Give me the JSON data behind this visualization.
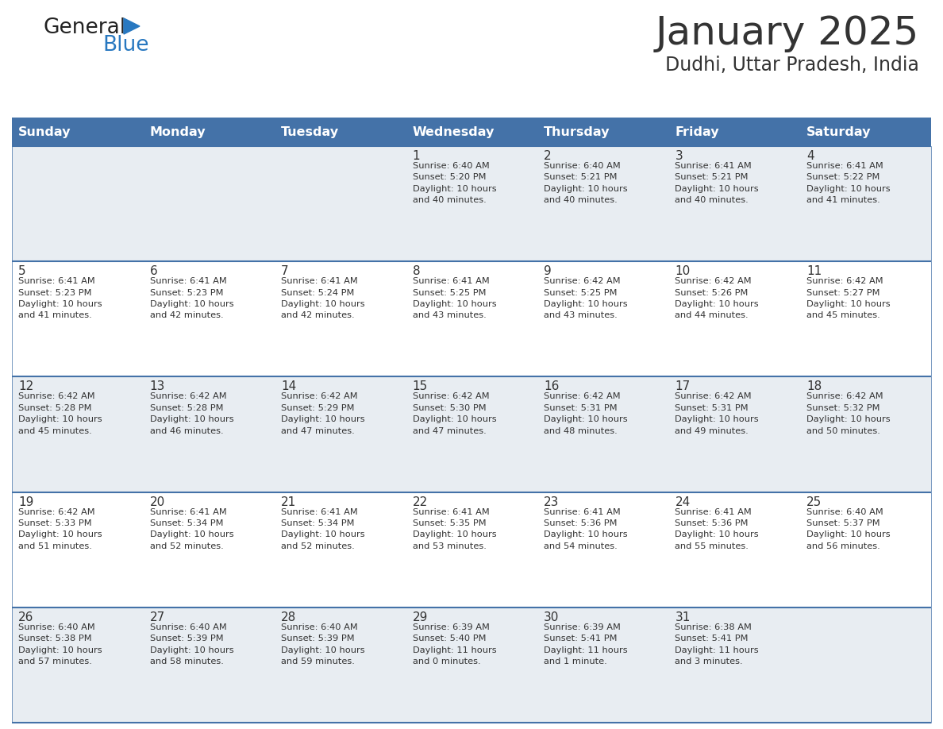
{
  "title": "January 2025",
  "subtitle": "Dudhi, Uttar Pradesh, India",
  "header_bg": "#4472a8",
  "header_text": "#ffffff",
  "cell_bg_gray": "#e8edf2",
  "cell_bg_white": "#ffffff",
  "day_number_color": "#333333",
  "text_color": "#333333",
  "line_color": "#4472a8",
  "days_of_week": [
    "Sunday",
    "Monday",
    "Tuesday",
    "Wednesday",
    "Thursday",
    "Friday",
    "Saturday"
  ],
  "weeks": [
    [
      {
        "day": "",
        "info": ""
      },
      {
        "day": "",
        "info": ""
      },
      {
        "day": "",
        "info": ""
      },
      {
        "day": "1",
        "info": "Sunrise: 6:40 AM\nSunset: 5:20 PM\nDaylight: 10 hours\nand 40 minutes."
      },
      {
        "day": "2",
        "info": "Sunrise: 6:40 AM\nSunset: 5:21 PM\nDaylight: 10 hours\nand 40 minutes."
      },
      {
        "day": "3",
        "info": "Sunrise: 6:41 AM\nSunset: 5:21 PM\nDaylight: 10 hours\nand 40 minutes."
      },
      {
        "day": "4",
        "info": "Sunrise: 6:41 AM\nSunset: 5:22 PM\nDaylight: 10 hours\nand 41 minutes."
      }
    ],
    [
      {
        "day": "5",
        "info": "Sunrise: 6:41 AM\nSunset: 5:23 PM\nDaylight: 10 hours\nand 41 minutes."
      },
      {
        "day": "6",
        "info": "Sunrise: 6:41 AM\nSunset: 5:23 PM\nDaylight: 10 hours\nand 42 minutes."
      },
      {
        "day": "7",
        "info": "Sunrise: 6:41 AM\nSunset: 5:24 PM\nDaylight: 10 hours\nand 42 minutes."
      },
      {
        "day": "8",
        "info": "Sunrise: 6:41 AM\nSunset: 5:25 PM\nDaylight: 10 hours\nand 43 minutes."
      },
      {
        "day": "9",
        "info": "Sunrise: 6:42 AM\nSunset: 5:25 PM\nDaylight: 10 hours\nand 43 minutes."
      },
      {
        "day": "10",
        "info": "Sunrise: 6:42 AM\nSunset: 5:26 PM\nDaylight: 10 hours\nand 44 minutes."
      },
      {
        "day": "11",
        "info": "Sunrise: 6:42 AM\nSunset: 5:27 PM\nDaylight: 10 hours\nand 45 minutes."
      }
    ],
    [
      {
        "day": "12",
        "info": "Sunrise: 6:42 AM\nSunset: 5:28 PM\nDaylight: 10 hours\nand 45 minutes."
      },
      {
        "day": "13",
        "info": "Sunrise: 6:42 AM\nSunset: 5:28 PM\nDaylight: 10 hours\nand 46 minutes."
      },
      {
        "day": "14",
        "info": "Sunrise: 6:42 AM\nSunset: 5:29 PM\nDaylight: 10 hours\nand 47 minutes."
      },
      {
        "day": "15",
        "info": "Sunrise: 6:42 AM\nSunset: 5:30 PM\nDaylight: 10 hours\nand 47 minutes."
      },
      {
        "day": "16",
        "info": "Sunrise: 6:42 AM\nSunset: 5:31 PM\nDaylight: 10 hours\nand 48 minutes."
      },
      {
        "day": "17",
        "info": "Sunrise: 6:42 AM\nSunset: 5:31 PM\nDaylight: 10 hours\nand 49 minutes."
      },
      {
        "day": "18",
        "info": "Sunrise: 6:42 AM\nSunset: 5:32 PM\nDaylight: 10 hours\nand 50 minutes."
      }
    ],
    [
      {
        "day": "19",
        "info": "Sunrise: 6:42 AM\nSunset: 5:33 PM\nDaylight: 10 hours\nand 51 minutes."
      },
      {
        "day": "20",
        "info": "Sunrise: 6:41 AM\nSunset: 5:34 PM\nDaylight: 10 hours\nand 52 minutes."
      },
      {
        "day": "21",
        "info": "Sunrise: 6:41 AM\nSunset: 5:34 PM\nDaylight: 10 hours\nand 52 minutes."
      },
      {
        "day": "22",
        "info": "Sunrise: 6:41 AM\nSunset: 5:35 PM\nDaylight: 10 hours\nand 53 minutes."
      },
      {
        "day": "23",
        "info": "Sunrise: 6:41 AM\nSunset: 5:36 PM\nDaylight: 10 hours\nand 54 minutes."
      },
      {
        "day": "24",
        "info": "Sunrise: 6:41 AM\nSunset: 5:36 PM\nDaylight: 10 hours\nand 55 minutes."
      },
      {
        "day": "25",
        "info": "Sunrise: 6:40 AM\nSunset: 5:37 PM\nDaylight: 10 hours\nand 56 minutes."
      }
    ],
    [
      {
        "day": "26",
        "info": "Sunrise: 6:40 AM\nSunset: 5:38 PM\nDaylight: 10 hours\nand 57 minutes."
      },
      {
        "day": "27",
        "info": "Sunrise: 6:40 AM\nSunset: 5:39 PM\nDaylight: 10 hours\nand 58 minutes."
      },
      {
        "day": "28",
        "info": "Sunrise: 6:40 AM\nSunset: 5:39 PM\nDaylight: 10 hours\nand 59 minutes."
      },
      {
        "day": "29",
        "info": "Sunrise: 6:39 AM\nSunset: 5:40 PM\nDaylight: 11 hours\nand 0 minutes."
      },
      {
        "day": "30",
        "info": "Sunrise: 6:39 AM\nSunset: 5:41 PM\nDaylight: 11 hours\nand 1 minute."
      },
      {
        "day": "31",
        "info": "Sunrise: 6:38 AM\nSunset: 5:41 PM\nDaylight: 11 hours\nand 3 minutes."
      },
      {
        "day": "",
        "info": ""
      }
    ]
  ],
  "logo_general_color": "#222222",
  "logo_blue_color": "#2878c0",
  "logo_triangle_color": "#2878c0",
  "fig_width": 11.88,
  "fig_height": 9.18,
  "dpi": 100
}
